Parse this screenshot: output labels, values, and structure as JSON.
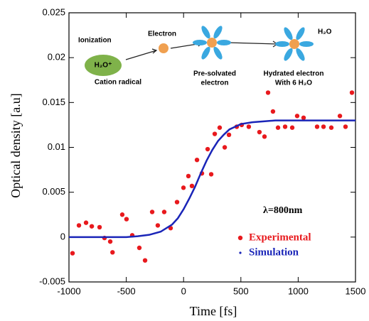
{
  "chart_data": {
    "type": "scatter",
    "xlabel": "Time [fs]",
    "ylabel": "Optical density [a.u]",
    "xlim": [
      -1000,
      1500
    ],
    "ylim": [
      -0.005,
      0.025
    ],
    "xticks": [
      -1000,
      -500,
      0,
      500,
      1000,
      1500
    ],
    "yticks": [
      -0.005,
      0,
      0.005,
      0.01,
      0.015,
      0.02,
      0.025
    ],
    "series": [
      {
        "name": "Experimental",
        "color": "#e8191d",
        "mode": "markers",
        "x": [
          -969,
          -913,
          -851,
          -801,
          -733,
          -690,
          -640,
          -620,
          -535,
          -498,
          -448,
          -386,
          -336,
          -274,
          -225,
          -169,
          -113,
          -57,
          -1,
          42,
          73,
          117,
          160,
          210,
          241,
          272,
          315,
          359,
          396,
          464,
          507,
          569,
          662,
          706,
          737,
          780,
          824,
          886,
          948,
          991,
          1047,
          1165,
          1221,
          1289,
          1364,
          1413,
          1469
        ],
        "values": [
          -0.0018,
          0.0013,
          0.0016,
          0.0012,
          0.0011,
          -0.0001,
          -0.0005,
          -0.0017,
          0.0025,
          0.002,
          0.0002,
          -0.0012,
          -0.0026,
          0.0028,
          0.0013,
          0.0028,
          0.001,
          0.0039,
          0.0055,
          0.0068,
          0.0057,
          0.0086,
          0.0071,
          0.0098,
          0.007,
          0.0115,
          0.0122,
          0.01,
          0.0114,
          0.0123,
          0.0125,
          0.0123,
          0.0117,
          0.0112,
          0.0161,
          0.014,
          0.0122,
          0.0123,
          0.0122,
          0.0135,
          0.0133,
          0.0123,
          0.0123,
          0.0122,
          0.0135,
          0.0123,
          0.0161
        ]
      },
      {
        "name": "Simulation",
        "color": "#1a25b8",
        "mode": "line",
        "x": [
          -1000,
          -500,
          -400,
          -300,
          -200,
          -100,
          -50,
          0,
          50,
          100,
          150,
          200,
          250,
          300,
          350,
          400,
          500,
          600,
          700,
          800,
          1000,
          1500
        ],
        "values": [
          0,
          0,
          0.0001,
          0.00025,
          0.0006,
          0.0014,
          0.0021,
          0.0031,
          0.0043,
          0.0056,
          0.0071,
          0.0085,
          0.0097,
          0.0107,
          0.0114,
          0.012,
          0.0126,
          0.0128,
          0.0129,
          0.013,
          0.013,
          0.013
        ]
      }
    ],
    "annotations": [
      "λ=800nm",
      "Ionization",
      "H₂O⁺",
      "Cation radical",
      "Electron",
      "Pre-solvated",
      "electron",
      "Hydrated electron",
      "With 6 H₂O",
      "H₂O"
    ]
  }
}
